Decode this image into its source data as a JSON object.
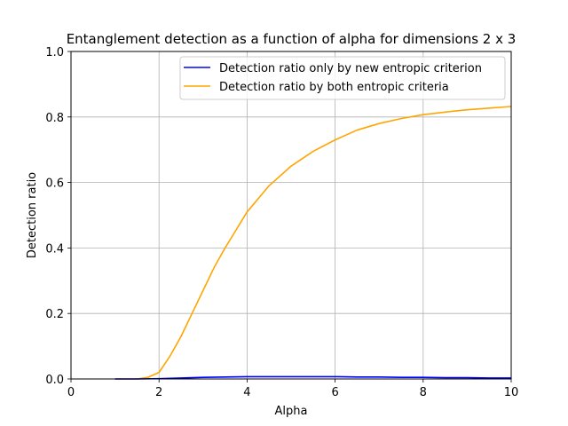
{
  "chart_data": {
    "type": "line",
    "title": "Entanglement detection as a function of alpha for dimensions 2 x 3",
    "xlabel": "Alpha",
    "ylabel": "Detection ratio",
    "xlim": [
      0,
      10
    ],
    "ylim": [
      0,
      1.0
    ],
    "xticks": [
      0,
      2,
      4,
      6,
      8,
      10
    ],
    "yticks": [
      0.0,
      0.2,
      0.4,
      0.6,
      0.8,
      1.0
    ],
    "xtick_labels": [
      "0",
      "2",
      "4",
      "6",
      "8",
      "10"
    ],
    "ytick_labels": [
      "0.0",
      "0.2",
      "0.4",
      "0.6",
      "0.8",
      "1.0"
    ],
    "grid": true,
    "legend_position": "top-right",
    "series": [
      {
        "name": "Detection ratio only by new entropic criterion",
        "color": "#0000ff",
        "x": [
          1.0,
          1.5,
          2.0,
          2.5,
          3.0,
          3.5,
          4.0,
          4.5,
          5.0,
          5.5,
          6.0,
          6.5,
          7.0,
          7.5,
          8.0,
          8.5,
          9.0,
          9.5,
          10.0
        ],
        "y": [
          0.0,
          0.0,
          0.001,
          0.003,
          0.005,
          0.006,
          0.007,
          0.007,
          0.007,
          0.007,
          0.007,
          0.006,
          0.006,
          0.005,
          0.005,
          0.004,
          0.004,
          0.003,
          0.003
        ]
      },
      {
        "name": "Detection ratio by both entropic criteria",
        "color": "#ffa500",
        "x": [
          1.0,
          1.5,
          1.75,
          2.0,
          2.25,
          2.5,
          2.75,
          3.0,
          3.25,
          3.5,
          3.75,
          4.0,
          4.5,
          5.0,
          5.5,
          6.0,
          6.5,
          7.0,
          7.5,
          8.0,
          8.5,
          9.0,
          9.5,
          10.0
        ],
        "y": [
          0.0,
          0.0,
          0.005,
          0.02,
          0.07,
          0.13,
          0.2,
          0.27,
          0.34,
          0.4,
          0.455,
          0.51,
          0.59,
          0.65,
          0.695,
          0.73,
          0.76,
          0.78,
          0.795,
          0.807,
          0.815,
          0.822,
          0.827,
          0.832
        ]
      }
    ]
  }
}
